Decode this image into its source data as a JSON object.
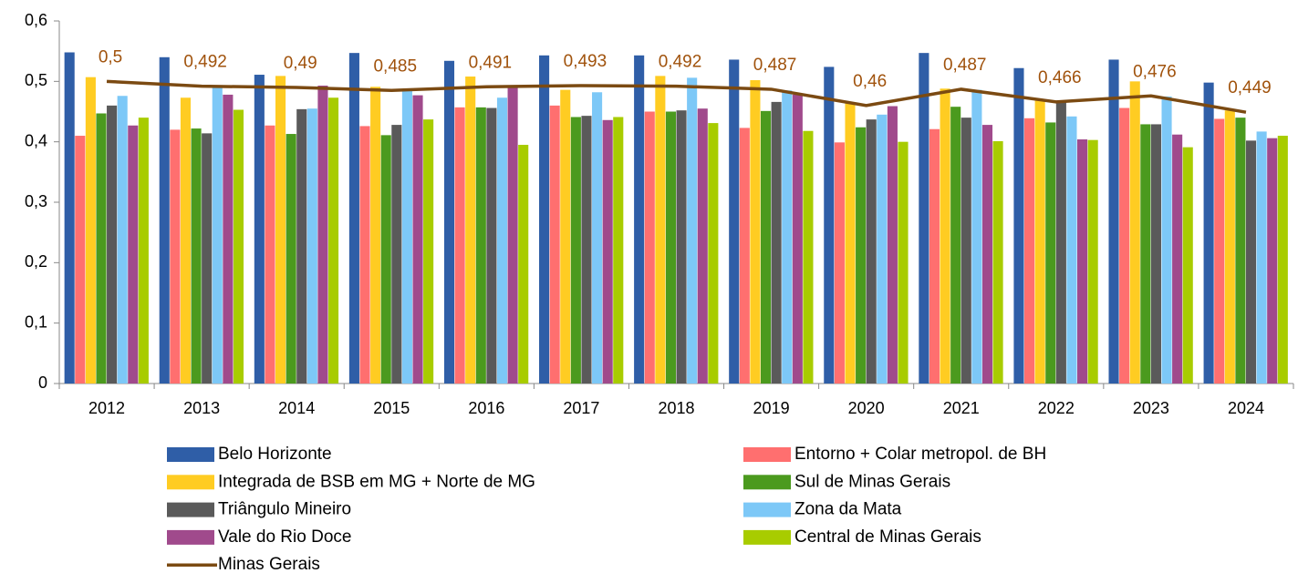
{
  "chart_data": {
    "type": "bar",
    "categories": [
      "2012",
      "2013",
      "2014",
      "2015",
      "2016",
      "2017",
      "2018",
      "2019",
      "2020",
      "2021",
      "2022",
      "2023",
      "2024"
    ],
    "ylim": [
      0,
      0.6
    ],
    "yticks": [
      0,
      {
        "value": 0.1,
        "label": "0,1"
      },
      {
        "value": 0.2,
        "label": "0,2"
      },
      {
        "value": 0.3,
        "label": "0,3"
      },
      {
        "value": 0.4,
        "label": "0,4"
      },
      {
        "value": 0.5,
        "label": "0,5"
      },
      {
        "value": 0.6,
        "label": "0,6"
      }
    ],
    "legend": "bottom",
    "series": [
      {
        "name": "Belo Horizonte",
        "color": "#2f5ea7",
        "values": [
          0.548,
          0.54,
          0.511,
          0.547,
          0.534,
          0.543,
          0.543,
          0.536,
          0.524,
          0.547,
          0.522,
          0.536,
          0.498
        ]
      },
      {
        "name": "Entorno + Colar metropol. de BH",
        "color": "#ff6f6f",
        "values": [
          0.41,
          0.42,
          0.427,
          0.426,
          0.457,
          0.46,
          0.45,
          0.423,
          0.399,
          0.421,
          0.439,
          0.456,
          0.438
        ]
      },
      {
        "name": "Integrada de BSB em MG + Norte de MG",
        "color": "#ffcc22",
        "values": [
          0.507,
          0.473,
          0.509,
          0.491,
          0.508,
          0.486,
          0.509,
          0.502,
          0.465,
          0.488,
          0.47,
          0.5,
          0.452
        ]
      },
      {
        "name": "Sul de Minas Gerais",
        "color": "#4b9a1e",
        "values": [
          0.447,
          0.422,
          0.413,
          0.411,
          0.457,
          0.441,
          0.45,
          0.451,
          0.424,
          0.458,
          0.432,
          0.429,
          0.44
        ]
      },
      {
        "name": "Triângulo Mineiro",
        "color": "#5a5a5a",
        "values": [
          0.46,
          0.414,
          0.454,
          0.428,
          0.456,
          0.443,
          0.452,
          0.466,
          0.437,
          0.44,
          0.466,
          0.429,
          0.402
        ]
      },
      {
        "name": "Zona da Mata",
        "color": "#7dc8f7",
        "values": [
          0.476,
          0.49,
          0.455,
          0.484,
          0.473,
          0.482,
          0.506,
          0.485,
          0.445,
          0.486,
          0.442,
          0.475,
          0.417
        ]
      },
      {
        "name": "Vale do Rio Doce",
        "color": "#a04a8c",
        "values": [
          0.427,
          0.478,
          0.493,
          0.477,
          0.492,
          0.436,
          0.455,
          0.478,
          0.459,
          0.428,
          0.404,
          0.412,
          0.406
        ]
      },
      {
        "name": "Central de Minas Gerais",
        "color": "#a8cc00",
        "values": [
          0.44,
          0.453,
          0.473,
          0.437,
          0.395,
          0.441,
          0.431,
          0.418,
          0.4,
          0.401,
          0.403,
          0.391,
          0.41
        ]
      },
      {
        "name": "Minas Gerais",
        "type": "line",
        "color": "#7b4a12",
        "label_color": "#a0520c",
        "values": [
          0.5,
          0.492,
          0.49,
          0.485,
          0.491,
          0.493,
          0.492,
          0.487,
          0.46,
          0.487,
          0.466,
          0.476,
          0.449
        ],
        "value_labels": [
          "0,5",
          "0,492",
          "0,49",
          "0,485",
          "0,491",
          "0,493",
          "0,492",
          "0,487",
          "0,46",
          "0,487",
          "0,466",
          "0,476",
          "0,449"
        ]
      }
    ]
  }
}
